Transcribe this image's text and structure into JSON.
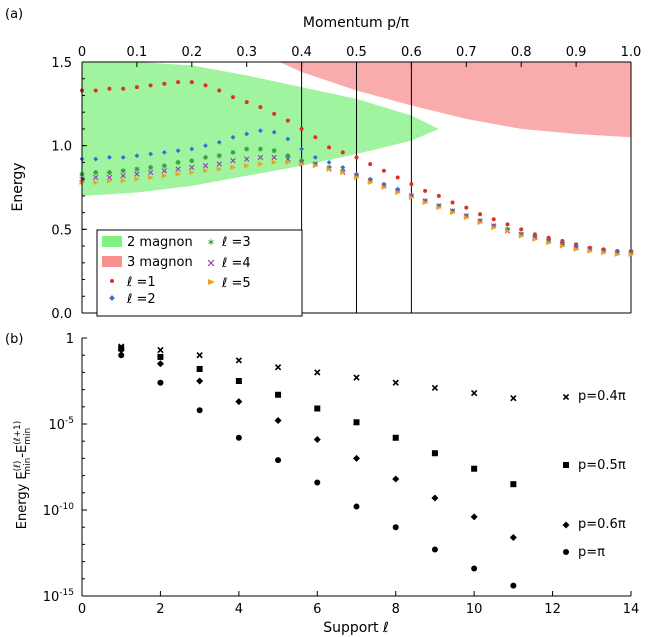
{
  "chart_data": [
    {
      "panel_label": "(a)",
      "type": "scatter",
      "xlabel": "Momentum p/π",
      "ylabel": "Energy",
      "xlim": [
        0,
        1.0
      ],
      "ylim": [
        0,
        1.5
      ],
      "xticks": [
        "0",
        "0.1",
        "0.2",
        "0.3",
        "0.4",
        "0.5",
        "0.6",
        "0.7",
        "0.8",
        "0.9",
        "1.0"
      ],
      "yticks": [
        "0.0",
        "0.5",
        "1.0",
        "1.5"
      ],
      "vlines": [
        0.4,
        0.5,
        0.6,
        1.0
      ],
      "legend_placement": "bottom-left",
      "bands": [
        {
          "name": "2 magnon",
          "color": "#80f080",
          "x": [
            0,
            0.1,
            0.2,
            0.3,
            0.4,
            0.5,
            0.6,
            0.65
          ],
          "lower": [
            0.7,
            0.72,
            0.76,
            0.82,
            0.88,
            0.95,
            1.03,
            1.1
          ],
          "upper": [
            1.5,
            1.5,
            1.48,
            1.42,
            1.35,
            1.28,
            1.18,
            1.1
          ]
        },
        {
          "name": "3 magnon",
          "color": "#f89090",
          "x": [
            0.36,
            0.4,
            0.5,
            0.6,
            0.7,
            0.8,
            0.9,
            1.0
          ],
          "lower": [
            1.5,
            1.44,
            1.33,
            1.24,
            1.16,
            1.1,
            1.07,
            1.05
          ],
          "upper": [
            1.5,
            1.5,
            1.5,
            1.5,
            1.5,
            1.5,
            1.5,
            1.5
          ]
        }
      ],
      "series": [
        {
          "name": "ℓ =1",
          "marker": "dot",
          "color": "#e03020",
          "x": [
            0,
            0.025,
            0.05,
            0.075,
            0.1,
            0.125,
            0.15,
            0.175,
            0.2,
            0.225,
            0.25,
            0.275,
            0.3,
            0.325,
            0.35,
            0.375,
            0.4,
            0.425,
            0.45,
            0.475,
            0.5,
            0.525,
            0.55,
            0.575,
            0.6,
            0.625,
            0.65,
            0.675,
            0.7,
            0.725,
            0.75,
            0.775,
            0.8,
            0.825,
            0.85,
            0.875,
            0.9,
            0.925,
            0.95,
            0.975,
            1.0
          ],
          "y": [
            1.33,
            1.33,
            1.34,
            1.34,
            1.35,
            1.36,
            1.37,
            1.38,
            1.38,
            1.36,
            1.33,
            1.29,
            1.26,
            1.23,
            1.19,
            1.15,
            1.1,
            1.05,
            0.99,
            0.96,
            0.93,
            0.89,
            0.85,
            0.81,
            0.77,
            0.73,
            0.7,
            0.66,
            0.63,
            0.59,
            0.56,
            0.53,
            0.5,
            0.47,
            0.45,
            0.43,
            0.41,
            0.39,
            0.38,
            0.37,
            0.37
          ]
        },
        {
          "name": "ℓ =2",
          "marker": "diamond",
          "color": "#3070d0",
          "x": [
            0,
            0.025,
            0.05,
            0.075,
            0.1,
            0.125,
            0.15,
            0.175,
            0.2,
            0.225,
            0.25,
            0.275,
            0.3,
            0.325,
            0.35,
            0.375,
            0.4,
            0.425,
            0.45,
            0.475,
            0.5,
            0.525,
            0.55,
            0.575,
            0.6,
            0.625,
            0.65,
            0.675,
            0.7,
            0.725,
            0.75,
            0.775,
            0.8,
            0.825,
            0.85,
            0.875,
            0.9,
            0.925,
            0.95,
            0.975,
            1.0
          ],
          "y": [
            0.92,
            0.92,
            0.93,
            0.93,
            0.94,
            0.95,
            0.96,
            0.97,
            0.98,
            1.0,
            1.02,
            1.05,
            1.07,
            1.09,
            1.08,
            1.04,
            0.98,
            0.93,
            0.9,
            0.87,
            0.83,
            0.8,
            0.77,
            0.74,
            0.7,
            0.67,
            0.64,
            0.61,
            0.58,
            0.55,
            0.52,
            0.5,
            0.47,
            0.45,
            0.43,
            0.41,
            0.4,
            0.38,
            0.37,
            0.37,
            0.36
          ]
        },
        {
          "name": "ℓ =3",
          "marker": "star",
          "color": "#30a040",
          "x": [
            0,
            0.025,
            0.05,
            0.075,
            0.1,
            0.125,
            0.15,
            0.175,
            0.2,
            0.225,
            0.25,
            0.275,
            0.3,
            0.325,
            0.35,
            0.375,
            0.4,
            0.425,
            0.45,
            0.475,
            0.5,
            0.525,
            0.55,
            0.575,
            0.6,
            0.625,
            0.65,
            0.675,
            0.7,
            0.725,
            0.75,
            0.775,
            0.8,
            0.825,
            0.85,
            0.875,
            0.9,
            0.925,
            0.95,
            0.975,
            1.0
          ],
          "y": [
            0.83,
            0.84,
            0.84,
            0.85,
            0.86,
            0.87,
            0.88,
            0.9,
            0.91,
            0.93,
            0.94,
            0.96,
            0.98,
            0.98,
            0.97,
            0.94,
            0.91,
            0.89,
            0.87,
            0.85,
            0.82,
            0.79,
            0.76,
            0.73,
            0.7,
            0.67,
            0.64,
            0.61,
            0.58,
            0.55,
            0.52,
            0.5,
            0.47,
            0.45,
            0.43,
            0.41,
            0.39,
            0.38,
            0.37,
            0.36,
            0.36
          ]
        },
        {
          "name": "ℓ =4",
          "marker": "cross",
          "color": "#9040b0",
          "x": [
            0,
            0.025,
            0.05,
            0.075,
            0.1,
            0.125,
            0.15,
            0.175,
            0.2,
            0.225,
            0.25,
            0.275,
            0.3,
            0.325,
            0.35,
            0.375,
            0.4,
            0.425,
            0.45,
            0.475,
            0.5,
            0.525,
            0.55,
            0.575,
            0.6,
            0.625,
            0.65,
            0.675,
            0.7,
            0.725,
            0.75,
            0.775,
            0.8,
            0.825,
            0.85,
            0.875,
            0.9,
            0.925,
            0.95,
            0.975,
            1.0
          ],
          "y": [
            0.8,
            0.81,
            0.81,
            0.82,
            0.83,
            0.84,
            0.85,
            0.86,
            0.87,
            0.88,
            0.89,
            0.91,
            0.92,
            0.93,
            0.93,
            0.92,
            0.9,
            0.89,
            0.86,
            0.84,
            0.82,
            0.79,
            0.76,
            0.73,
            0.7,
            0.67,
            0.64,
            0.61,
            0.58,
            0.55,
            0.52,
            0.49,
            0.47,
            0.45,
            0.43,
            0.41,
            0.39,
            0.38,
            0.37,
            0.36,
            0.36
          ]
        },
        {
          "name": "ℓ =5",
          "marker": "triangle",
          "color": "#f0a020",
          "x": [
            0,
            0.025,
            0.05,
            0.075,
            0.1,
            0.125,
            0.15,
            0.175,
            0.2,
            0.225,
            0.25,
            0.275,
            0.3,
            0.325,
            0.35,
            0.375,
            0.4,
            0.425,
            0.45,
            0.475,
            0.5,
            0.525,
            0.55,
            0.575,
            0.6,
            0.625,
            0.65,
            0.675,
            0.7,
            0.725,
            0.75,
            0.775,
            0.8,
            0.825,
            0.85,
            0.875,
            0.9,
            0.925,
            0.95,
            0.975,
            1.0
          ],
          "y": [
            0.78,
            0.78,
            0.79,
            0.79,
            0.8,
            0.81,
            0.82,
            0.83,
            0.84,
            0.85,
            0.86,
            0.87,
            0.88,
            0.89,
            0.9,
            0.9,
            0.89,
            0.88,
            0.86,
            0.84,
            0.81,
            0.78,
            0.75,
            0.72,
            0.69,
            0.66,
            0.63,
            0.6,
            0.57,
            0.54,
            0.51,
            0.49,
            0.46,
            0.44,
            0.42,
            0.4,
            0.38,
            0.37,
            0.36,
            0.35,
            0.35
          ]
        }
      ]
    },
    {
      "panel_label": "(b)",
      "type": "scatter",
      "xlabel": "Support ℓ",
      "ylabel": "Energy E_min^(ℓ)-E_min^(ℓ+1)",
      "yscale": "log",
      "xlim": [
        0,
        14
      ],
      "ylim_exponent": [
        -15,
        0
      ],
      "xticks": [
        "0",
        "2",
        "4",
        "6",
        "8",
        "10",
        "12",
        "14"
      ],
      "yticks": [
        "1",
        "10^-5",
        "10^-10",
        "10^-15"
      ],
      "series": [
        {
          "name": "p=0.4π",
          "marker": "cross",
          "x": [
            1,
            2,
            3,
            4,
            5,
            6,
            7,
            8,
            9,
            10,
            11
          ],
          "log10_y": [
            -0.5,
            -0.7,
            -1.0,
            -1.3,
            -1.7,
            -2.0,
            -2.3,
            -2.6,
            -2.9,
            -3.2,
            -3.5
          ]
        },
        {
          "name": "p=0.5π",
          "marker": "square",
          "x": [
            1,
            2,
            3,
            4,
            5,
            6,
            7,
            8,
            9,
            10,
            11
          ],
          "log10_y": [
            -0.6,
            -1.1,
            -1.8,
            -2.5,
            -3.3,
            -4.1,
            -4.9,
            -5.8,
            -6.7,
            -7.6,
            -8.5
          ]
        },
        {
          "name": "p=0.6π",
          "marker": "diamond",
          "x": [
            1,
            2,
            3,
            4,
            5,
            6,
            7,
            8,
            9,
            10,
            11
          ],
          "log10_y": [
            -0.7,
            -1.5,
            -2.5,
            -3.7,
            -4.8,
            -5.9,
            -7.0,
            -8.2,
            -9.3,
            -10.4,
            -11.6
          ]
        },
        {
          "name": "p=π",
          "marker": "dot",
          "x": [
            1,
            2,
            3,
            4,
            5,
            6,
            7,
            8,
            9,
            10,
            11
          ],
          "log10_y": [
            -1.0,
            -2.6,
            -4.2,
            -5.8,
            -7.1,
            -8.4,
            -9.8,
            -11.0,
            -12.3,
            -13.4,
            -14.4
          ]
        }
      ]
    }
  ],
  "text": {
    "a_label": "(a)",
    "b_label": "(b)",
    "a_xlabel": "Momentum p/π",
    "a_ylabel": "Energy",
    "b_xlabel": "Support ℓ",
    "b_ylabel_main": "Energy E",
    "b_ylabel_sup1": "(ℓ)",
    "b_ylabel_sub1": "min",
    "b_ylabel_mid": "-E",
    "b_ylabel_sup2": "(ℓ+1)",
    "b_ylabel_sub2": "min",
    "b_ytick_base": "10",
    "b_ytick_one": "1",
    "b_ytick_exps": [
      "-5",
      "-10",
      "-15"
    ],
    "legend_2mag": "2 magnon",
    "legend_3mag": "3 magnon",
    "legend_l1": "ℓ =1",
    "legend_l2": "ℓ =2",
    "legend_l3": "ℓ =3",
    "legend_l4": "ℓ =4",
    "legend_l5": "ℓ =5",
    "label_04": "p=0.4π",
    "label_05": "p=0.5π",
    "label_06": "p=0.6π",
    "label_pi": "p=π"
  }
}
